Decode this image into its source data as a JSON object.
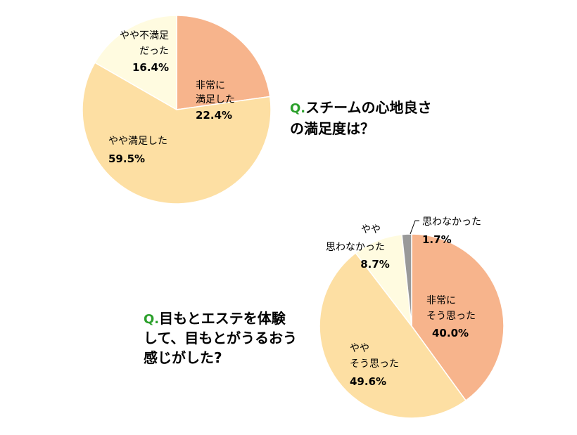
{
  "colors": {
    "very": "#f7b48c",
    "somewhat": "#fddfa3",
    "somewhat_not": "#fffbe0",
    "not": "#999999",
    "stroke": "#ffffff",
    "question_mark": "#2ca02c"
  },
  "chart_data": [
    {
      "type": "pie",
      "question_mark": "Q.",
      "question_lines": [
        "スチームの心地良さ",
        "の満足度は？"
      ],
      "slices": [
        {
          "label_lines": [
            "非常に",
            "満足した"
          ],
          "value": 22.4,
          "pct_label": "22.4%",
          "color_key": "very"
        },
        {
          "label_lines": [
            "やや満足した"
          ],
          "value": 59.5,
          "pct_label": "59.5%",
          "color_key": "somewhat"
        },
        {
          "label_lines": [
            "やや不満足",
            "だった"
          ],
          "value": 16.4,
          "pct_label": "16.4%",
          "color_key": "somewhat_not"
        }
      ]
    },
    {
      "type": "pie",
      "question_mark": "Q.",
      "question_lines": [
        "目もとエステを体験",
        "して、目もとがうるおう",
        "感じがした?"
      ],
      "slices": [
        {
          "label_lines": [
            "非常に",
            "そう思った"
          ],
          "value": 40.0,
          "pct_label": "40.0%",
          "color_key": "very"
        },
        {
          "label_lines": [
            "やや",
            "そう思った"
          ],
          "value": 49.6,
          "pct_label": "49.6%",
          "color_key": "somewhat"
        },
        {
          "label_lines": [
            "やや",
            "思わなかった"
          ],
          "value": 8.7,
          "pct_label": "8.7%",
          "color_key": "somewhat_not"
        },
        {
          "label_lines": [
            "思わなかった"
          ],
          "value": 1.7,
          "pct_label": "1.7%",
          "color_key": "not"
        }
      ]
    }
  ]
}
